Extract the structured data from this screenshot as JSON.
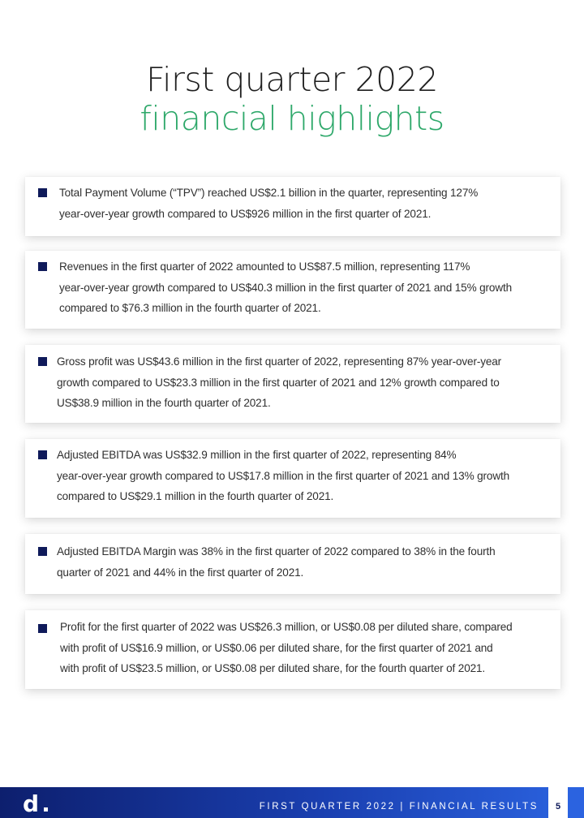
{
  "title": {
    "line1": "First quarter 2022",
    "line2": "financial highlights"
  },
  "highlights": [
    {
      "lines": [
        "Total Payment Volume (“TPV”) reached US$2.1 billion in the quarter, representing 127%",
        "year-over-year growth compared to US$926 million in the first quarter of 2021."
      ]
    },
    {
      "lines": [
        "Revenues in the first quarter of 2022 amounted to US$87.5 million, representing 117%",
        "year-over-year growth compared to US$40.3 million in the first quarter of 2021 and 15% growth",
        "compared to $76.3 million in the fourth quarter of 2021."
      ]
    },
    {
      "lines": [
        "Gross profit was US$43.6 million in the first quarter of 2022, representing 87% year-over-year",
        "growth compared to US$23.3 million in the first quarter of 2021 and 12% growth compared to",
        "US$38.9 million in the fourth quarter of 2021."
      ]
    },
    {
      "lines": [
        "Adjusted EBITDA was US$32.9 million in the first quarter of 2022, representing 84%",
        "year-over-year growth compared to US$17.8 million in the first quarter of 2021 and 13% growth",
        "compared to US$29.1 million in the fourth quarter of 2021."
      ]
    },
    {
      "lines": [
        "Adjusted EBITDA Margin was 38% in the first quarter of 2022 compared to 38% in the fourth",
        "quarter of 2021 and 44% in the first quarter of 2021."
      ]
    },
    {
      "lines": [
        "Profit for the first quarter of 2022 was US$26.3 million, or US$0.08 per diluted share, compared",
        "with profit of US$16.9 million, or US$0.06 per diluted share, for the first quarter of 2021 and",
        "with profit of US$23.5 million, or US$0.08 per diluted share, for the fourth quarter of 2021."
      ]
    }
  ],
  "footer": {
    "logo_text": "d",
    "label": "FIRST QUARTER 2022 | FINANCIAL RESULTS",
    "page_number": "5"
  },
  "colors": {
    "title_accent": "#2ea86a",
    "bullet": "#0f1a5a",
    "footer_gradient_start": "#0d1f6e",
    "footer_gradient_end": "#2b63e0"
  }
}
